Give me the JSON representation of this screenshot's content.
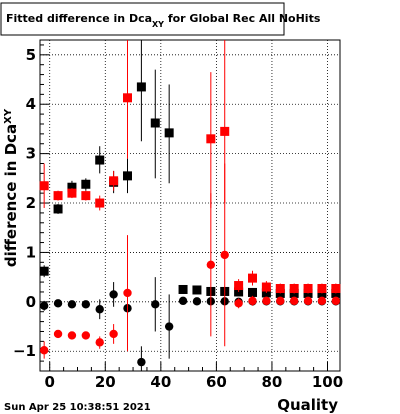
{
  "chart_data": {
    "type": "scatter",
    "title": "Fitted difference in Dca_XY for Global Rec All NoHits",
    "title_parts": {
      "main": "Fitted difference in Dca",
      "sub": "XY",
      "tail": " for Global Rec All NoHits"
    },
    "xlabel": "Quality",
    "ylabel": "difference in Dca_XY",
    "ylabel_parts": {
      "main": "difference in Dca",
      "sub": "XY"
    },
    "xlim": [
      -3.5,
      104.5
    ],
    "ylim": [
      -1.4,
      5.3
    ],
    "grid": true,
    "x_ticks": [
      0,
      20,
      40,
      60,
      80,
      100
    ],
    "y_ticks": [
      -1,
      0,
      1,
      2,
      3,
      4,
      5
    ],
    "x_tick_labels": [
      "0",
      "20",
      "40",
      "60",
      "80",
      "100"
    ],
    "y_tick_labels": [
      "−1",
      "0",
      "1",
      "2",
      "3",
      "4",
      "5"
    ],
    "timestamp": "Sun Apr 25 10:38:51 2021",
    "series": [
      {
        "marker": "square",
        "color": "#000000",
        "points": [
          {
            "x": -2,
            "y": 0.62,
            "lo": 0.5,
            "hi": 0.74
          },
          {
            "x": 3,
            "y": 1.88,
            "lo": 1.78,
            "hi": 1.98
          },
          {
            "x": 8,
            "y": 2.32,
            "lo": 2.2,
            "hi": 2.45
          },
          {
            "x": 13,
            "y": 2.38,
            "lo": 2.25,
            "hi": 2.5
          },
          {
            "x": 18,
            "y": 2.87,
            "lo": 2.6,
            "hi": 3.15
          },
          {
            "x": 23,
            "y": 2.42,
            "lo": 2.2,
            "hi": 2.65
          },
          {
            "x": 28,
            "y": 2.55,
            "lo": 2.2,
            "hi": 2.9
          },
          {
            "x": 33,
            "y": 4.35,
            "lo": 3.25,
            "hi": 5.3
          },
          {
            "x": 38,
            "y": 3.62,
            "lo": 2.5,
            "hi": 4.7
          },
          {
            "x": 43,
            "y": 3.42,
            "lo": 2.4,
            "hi": 4.4
          },
          {
            "x": 48,
            "y": 0.25,
            "lo": 0.16,
            "hi": 0.34
          },
          {
            "x": 53,
            "y": 0.24,
            "lo": 0.16,
            "hi": 0.32
          },
          {
            "x": 58,
            "y": 0.21,
            "lo": 0.12,
            "hi": 0.3
          },
          {
            "x": 63,
            "y": 0.21,
            "lo": 0.12,
            "hi": 0.3
          },
          {
            "x": 68,
            "y": 0.2,
            "lo": 0.12,
            "hi": 0.28
          },
          {
            "x": 73,
            "y": 0.19,
            "lo": 0.12,
            "hi": 0.26
          },
          {
            "x": 78,
            "y": 0.18,
            "lo": 0.11,
            "hi": 0.25
          },
          {
            "x": 83,
            "y": 0.17,
            "lo": 0.11,
            "hi": 0.23
          },
          {
            "x": 88,
            "y": 0.17,
            "lo": 0.11,
            "hi": 0.23
          },
          {
            "x": 93,
            "y": 0.17,
            "lo": 0.11,
            "hi": 0.23
          },
          {
            "x": 98,
            "y": 0.17,
            "lo": 0.11,
            "hi": 0.23
          },
          {
            "x": 103,
            "y": 0.17,
            "lo": 0.11,
            "hi": 0.23
          }
        ]
      },
      {
        "marker": "square",
        "color": "#ff0000",
        "points": [
          {
            "x": -2,
            "y": 2.35,
            "lo": 1.9,
            "hi": 2.8
          },
          {
            "x": 3,
            "y": 2.15,
            "lo": 2.05,
            "hi": 2.25
          },
          {
            "x": 8,
            "y": 2.2,
            "lo": 2.1,
            "hi": 2.3
          },
          {
            "x": 13,
            "y": 2.15,
            "lo": 2.05,
            "hi": 2.25
          },
          {
            "x": 18,
            "y": 2.0,
            "lo": 1.85,
            "hi": 2.15
          },
          {
            "x": 23,
            "y": 2.45,
            "lo": 2.25,
            "hi": 2.65
          },
          {
            "x": 28,
            "y": 4.13,
            "lo": 2.9,
            "hi": 5.3
          },
          {
            "x": 58,
            "y": 3.3,
            "lo": 1.9,
            "hi": 4.65
          },
          {
            "x": 63,
            "y": 3.45,
            "lo": 2.0,
            "hi": 5.3
          },
          {
            "x": 68,
            "y": 0.33,
            "lo": 0.2,
            "hi": 0.46
          },
          {
            "x": 73,
            "y": 0.48,
            "lo": 0.33,
            "hi": 0.63
          },
          {
            "x": 78,
            "y": 0.3,
            "lo": 0.18,
            "hi": 0.42
          },
          {
            "x": 83,
            "y": 0.27,
            "lo": 0.17,
            "hi": 0.37
          },
          {
            "x": 88,
            "y": 0.27,
            "lo": 0.17,
            "hi": 0.37
          },
          {
            "x": 93,
            "y": 0.27,
            "lo": 0.17,
            "hi": 0.37
          },
          {
            "x": 98,
            "y": 0.27,
            "lo": 0.17,
            "hi": 0.37
          },
          {
            "x": 103,
            "y": 0.27,
            "lo": 0.17,
            "hi": 0.37
          }
        ]
      },
      {
        "marker": "circle",
        "color": "#000000",
        "points": [
          {
            "x": -2,
            "y": -0.08,
            "lo": -0.18,
            "hi": 0.02
          },
          {
            "x": 3,
            "y": -0.03,
            "lo": -0.1,
            "hi": 0.04
          },
          {
            "x": 8,
            "y": -0.05,
            "lo": -0.12,
            "hi": 0.02
          },
          {
            "x": 13,
            "y": -0.05,
            "lo": -0.12,
            "hi": 0.02
          },
          {
            "x": 18,
            "y": -0.15,
            "lo": -0.35,
            "hi": 0.05
          },
          {
            "x": 23,
            "y": 0.15,
            "lo": -0.1,
            "hi": 0.4
          },
          {
            "x": 28,
            "y": -0.13,
            "lo": -0.45,
            "hi": 0.2
          },
          {
            "x": 33,
            "y": -1.22,
            "lo": -1.4,
            "hi": -0.9
          },
          {
            "x": 38,
            "y": -0.05,
            "lo": -0.6,
            "hi": 0.5
          },
          {
            "x": 43,
            "y": -0.5,
            "lo": -1.15,
            "hi": 0.15
          },
          {
            "x": 48,
            "y": 0.02,
            "lo": -0.05,
            "hi": 0.09
          },
          {
            "x": 53,
            "y": 0.01,
            "lo": -0.05,
            "hi": 0.07
          },
          {
            "x": 58,
            "y": 0.01,
            "lo": -0.05,
            "hi": 0.07
          },
          {
            "x": 63,
            "y": 0.01,
            "lo": -0.05,
            "hi": 0.07
          },
          {
            "x": 68,
            "y": 0.0,
            "lo": -0.05,
            "hi": 0.05
          },
          {
            "x": 73,
            "y": 0.01,
            "lo": -0.04,
            "hi": 0.06
          },
          {
            "x": 78,
            "y": 0.01,
            "lo": -0.04,
            "hi": 0.06
          },
          {
            "x": 83,
            "y": 0.01,
            "lo": -0.04,
            "hi": 0.06
          },
          {
            "x": 88,
            "y": 0.01,
            "lo": -0.04,
            "hi": 0.06
          },
          {
            "x": 93,
            "y": 0.01,
            "lo": -0.04,
            "hi": 0.06
          },
          {
            "x": 98,
            "y": 0.01,
            "lo": -0.04,
            "hi": 0.06
          },
          {
            "x": 103,
            "y": 0.01,
            "lo": -0.04,
            "hi": 0.06
          }
        ]
      },
      {
        "marker": "circle",
        "color": "#ff0000",
        "points": [
          {
            "x": -2,
            "y": -0.98,
            "lo": -1.15,
            "hi": -0.8
          },
          {
            "x": 3,
            "y": -0.65,
            "lo": -0.73,
            "hi": -0.57
          },
          {
            "x": 8,
            "y": -0.68,
            "lo": -0.76,
            "hi": -0.6
          },
          {
            "x": 13,
            "y": -0.68,
            "lo": -0.76,
            "hi": -0.6
          },
          {
            "x": 18,
            "y": -0.82,
            "lo": -0.95,
            "hi": -0.7
          },
          {
            "x": 23,
            "y": -0.65,
            "lo": -0.85,
            "hi": -0.45
          },
          {
            "x": 28,
            "y": 0.18,
            "lo": -1.0,
            "hi": 1.35
          },
          {
            "x": 58,
            "y": 0.75,
            "lo": -0.7,
            "hi": 2.2
          },
          {
            "x": 63,
            "y": 0.95,
            "lo": -0.9,
            "hi": 2.8
          },
          {
            "x": 68,
            "y": -0.03,
            "lo": -0.13,
            "hi": 0.07
          },
          {
            "x": 73,
            "y": 0.02,
            "lo": -0.08,
            "hi": 0.12
          },
          {
            "x": 78,
            "y": 0.02,
            "lo": -0.06,
            "hi": 0.1
          },
          {
            "x": 83,
            "y": 0.02,
            "lo": -0.06,
            "hi": 0.1
          },
          {
            "x": 88,
            "y": 0.02,
            "lo": -0.06,
            "hi": 0.1
          },
          {
            "x": 93,
            "y": 0.02,
            "lo": -0.06,
            "hi": 0.1
          },
          {
            "x": 98,
            "y": 0.02,
            "lo": -0.06,
            "hi": 0.1
          },
          {
            "x": 103,
            "y": 0.02,
            "lo": -0.06,
            "hi": 0.1
          }
        ]
      }
    ]
  }
}
